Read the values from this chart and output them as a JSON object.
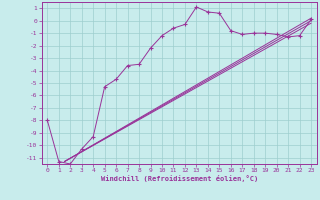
{
  "bg_color": "#c8ecec",
  "grid_color": "#9ecece",
  "line_color": "#993399",
  "xlabel": "Windchill (Refroidissement éolien,°C)",
  "xlim": [
    -0.5,
    23.5
  ],
  "ylim": [
    -11.5,
    1.5
  ],
  "xticks": [
    0,
    1,
    2,
    3,
    4,
    5,
    6,
    7,
    8,
    9,
    10,
    11,
    12,
    13,
    14,
    15,
    16,
    17,
    18,
    19,
    20,
    21,
    22,
    23
  ],
  "yticks": [
    1,
    0,
    -1,
    -2,
    -3,
    -4,
    -5,
    -6,
    -7,
    -8,
    -9,
    -10,
    -11
  ],
  "data_x": [
    0,
    1,
    2,
    3,
    4,
    5,
    6,
    7,
    8,
    9,
    10,
    11,
    12,
    13,
    14,
    15,
    16,
    17,
    18,
    19,
    20,
    21,
    22,
    23
  ],
  "data_y": [
    -8.0,
    -11.3,
    -11.5,
    -10.3,
    -9.3,
    -5.3,
    -4.7,
    -3.6,
    -3.5,
    -2.2,
    -1.2,
    -0.6,
    -0.3,
    1.1,
    0.7,
    0.6,
    -0.8,
    -1.1,
    -1.0,
    -1.0,
    -1.1,
    -1.3,
    -1.2,
    0.1
  ],
  "straight_lines": [
    {
      "x": [
        1.5,
        23
      ],
      "y": [
        -11.3,
        -0.2
      ]
    },
    {
      "x": [
        1.5,
        23
      ],
      "y": [
        -11.3,
        0.0
      ]
    },
    {
      "x": [
        1.5,
        23
      ],
      "y": [
        -11.3,
        0.2
      ]
    }
  ]
}
